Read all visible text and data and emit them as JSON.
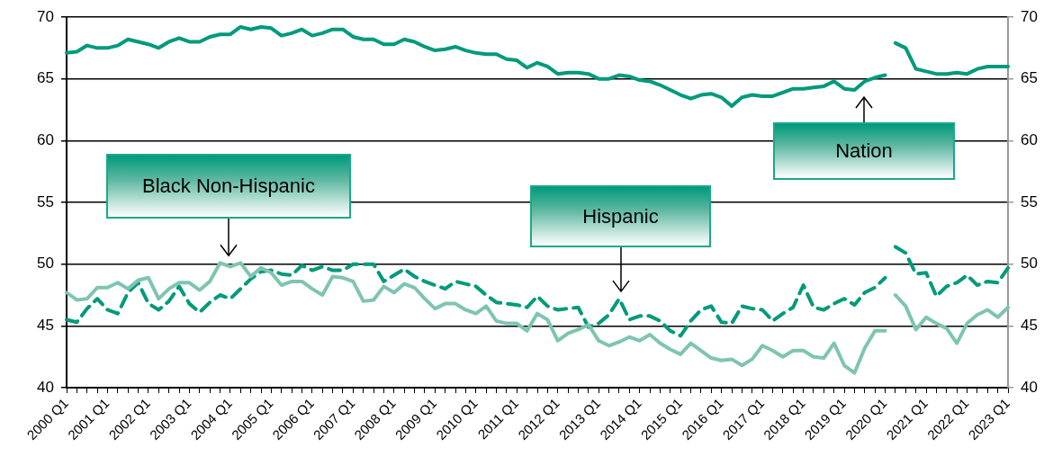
{
  "chart_data": {
    "type": "line",
    "categories": [
      "2000 Q1",
      null,
      null,
      null,
      "2001 Q1",
      null,
      null,
      null,
      "2002 Q1",
      null,
      null,
      null,
      "2003 Q1",
      null,
      null,
      null,
      "2004 Q1",
      null,
      null,
      null,
      "2005 Q1",
      null,
      null,
      null,
      "2006 Q1",
      null,
      null,
      null,
      "2007 Q1",
      null,
      null,
      null,
      "2008 Q1",
      null,
      null,
      null,
      "2009 Q1",
      null,
      null,
      null,
      "2010 Q1",
      null,
      null,
      null,
      "2011 Q1",
      null,
      null,
      null,
      "2012 Q1",
      null,
      null,
      null,
      "2013 Q1",
      null,
      null,
      null,
      "2014 Q1",
      null,
      null,
      null,
      "2015 Q1",
      null,
      null,
      null,
      "2016 Q1",
      null,
      null,
      null,
      "2017 Q1",
      null,
      null,
      null,
      "2018 Q1",
      null,
      null,
      null,
      "2019 Q1",
      null,
      null,
      null,
      "2020 Q1",
      null,
      null,
      null,
      "2021 Q1",
      null,
      null,
      null,
      "2022 Q1",
      null,
      null,
      null,
      "2023 Q1"
    ],
    "series": [
      {
        "name": "Nation",
        "color": "#009a7b",
        "line_style": "solid",
        "values": [
          67.1,
          67.2,
          67.7,
          67.5,
          67.5,
          67.7,
          68.2,
          68.0,
          67.8,
          67.5,
          68.0,
          68.3,
          68.0,
          68.0,
          68.4,
          68.6,
          68.6,
          69.2,
          69.0,
          69.2,
          69.1,
          68.5,
          68.7,
          69.0,
          68.5,
          68.7,
          69.0,
          69.0,
          68.4,
          68.2,
          68.2,
          67.8,
          67.8,
          68.2,
          68.0,
          67.6,
          67.3,
          67.4,
          67.6,
          67.3,
          67.1,
          67.0,
          67.0,
          66.6,
          66.5,
          65.9,
          66.3,
          66.0,
          65.4,
          65.5,
          65.5,
          65.4,
          65.0,
          65.0,
          65.3,
          65.2,
          64.9,
          64.8,
          64.5,
          64.1,
          63.7,
          63.4,
          63.7,
          63.8,
          63.5,
          62.8,
          63.5,
          63.7,
          63.6,
          63.6,
          63.9,
          64.2,
          64.2,
          64.3,
          64.4,
          64.8,
          64.2,
          64.1,
          64.8,
          65.1,
          65.3,
          null,
          null,
          null,
          null,
          null,
          null,
          null,
          null,
          null,
          null,
          null,
          null
        ]
      },
      {
        "name": "Black Non-Hispanic",
        "color": "#7fc4b2",
        "line_style": "solid",
        "values": [
          47.7,
          47.1,
          47.2,
          48.1,
          48.1,
          48.5,
          48.0,
          48.7,
          48.9,
          47.2,
          48.0,
          48.5,
          48.5,
          47.9,
          48.6,
          50.1,
          49.8,
          50.1,
          49.0,
          49.7,
          49.3,
          48.3,
          48.6,
          48.6,
          48.0,
          47.5,
          49.0,
          48.9,
          48.6,
          47.0,
          47.1,
          48.2,
          47.7,
          48.4,
          48.1,
          47.2,
          46.4,
          46.8,
          46.8,
          46.3,
          46.0,
          46.6,
          45.4,
          45.2,
          45.2,
          44.6,
          46.0,
          45.5,
          43.8,
          44.4,
          44.7,
          45.1,
          43.8,
          43.4,
          43.7,
          44.1,
          43.8,
          44.3,
          43.6,
          43.1,
          42.7,
          43.6,
          43.0,
          42.4,
          42.2,
          42.3,
          41.8,
          42.3,
          43.4,
          43.0,
          42.5,
          43.0,
          43.0,
          42.5,
          42.4,
          43.6,
          41.8,
          41.2,
          43.2,
          44.6,
          44.6,
          null,
          null,
          null,
          null,
          null,
          null,
          null,
          null,
          null,
          null,
          null,
          null
        ]
      },
      {
        "name": "Hispanic",
        "color": "#009a7b",
        "line_style": "dashed",
        "values": [
          45.5,
          45.3,
          46.4,
          47.2,
          46.3,
          46.0,
          47.7,
          48.5,
          46.8,
          46.3,
          47.0,
          48.2,
          46.8,
          46.1,
          46.9,
          47.5,
          47.2,
          48.0,
          48.8,
          49.4,
          49.5,
          49.2,
          49.1,
          49.9,
          49.5,
          49.8,
          49.5,
          49.5,
          50.0,
          50.0,
          50.0,
          48.6,
          49.1,
          49.6,
          49.0,
          48.6,
          48.3,
          48.0,
          48.6,
          48.4,
          48.2,
          47.5,
          46.9,
          46.8,
          46.7,
          46.5,
          47.4,
          46.6,
          46.3,
          46.4,
          46.5,
          44.9,
          45.2,
          45.9,
          47.2,
          45.5,
          45.8,
          45.8,
          45.4,
          44.6,
          44.2,
          45.4,
          46.3,
          46.6,
          45.3,
          45.2,
          46.6,
          46.4,
          46.3,
          45.4,
          46.0,
          46.5,
          48.3,
          46.5,
          46.3,
          46.8,
          47.2,
          46.7,
          47.7,
          48.1,
          48.9,
          null,
          null,
          null,
          null,
          null,
          null,
          null,
          null,
          null,
          null,
          null,
          null
        ]
      },
      {
        "color": "#009a7b",
        "line_style": "solid",
        "values": [
          null,
          null,
          null,
          null,
          null,
          null,
          null,
          null,
          null,
          null,
          null,
          null,
          null,
          null,
          null,
          null,
          null,
          null,
          null,
          null,
          null,
          null,
          null,
          null,
          null,
          null,
          null,
          null,
          null,
          null,
          null,
          null,
          null,
          null,
          null,
          null,
          null,
          null,
          null,
          null,
          null,
          null,
          null,
          null,
          null,
          null,
          null,
          null,
          null,
          null,
          null,
          null,
          null,
          null,
          null,
          null,
          null,
          null,
          null,
          null,
          null,
          null,
          null,
          null,
          null,
          null,
          null,
          null,
          null,
          null,
          null,
          null,
          null,
          null,
          null,
          null,
          null,
          null,
          null,
          null,
          null,
          67.9,
          67.5,
          65.8,
          65.6,
          65.4,
          65.4,
          65.5,
          65.4,
          65.8,
          66.0,
          66.0,
          66.0
        ]
      },
      {
        "color": "#7fc4b2",
        "line_style": "solid",
        "values": [
          null,
          null,
          null,
          null,
          null,
          null,
          null,
          null,
          null,
          null,
          null,
          null,
          null,
          null,
          null,
          null,
          null,
          null,
          null,
          null,
          null,
          null,
          null,
          null,
          null,
          null,
          null,
          null,
          null,
          null,
          null,
          null,
          null,
          null,
          null,
          null,
          null,
          null,
          null,
          null,
          null,
          null,
          null,
          null,
          null,
          null,
          null,
          null,
          null,
          null,
          null,
          null,
          null,
          null,
          null,
          null,
          null,
          null,
          null,
          null,
          null,
          null,
          null,
          null,
          null,
          null,
          null,
          null,
          null,
          null,
          null,
          null,
          null,
          null,
          null,
          null,
          null,
          null,
          null,
          null,
          null,
          47.5,
          46.6,
          44.7,
          45.7,
          45.2,
          44.8,
          43.6,
          45.2,
          45.9,
          46.3,
          45.7,
          46.5
        ]
      },
      {
        "color": "#009a7b",
        "line_style": "dashed",
        "values": [
          null,
          null,
          null,
          null,
          null,
          null,
          null,
          null,
          null,
          null,
          null,
          null,
          null,
          null,
          null,
          null,
          null,
          null,
          null,
          null,
          null,
          null,
          null,
          null,
          null,
          null,
          null,
          null,
          null,
          null,
          null,
          null,
          null,
          null,
          null,
          null,
          null,
          null,
          null,
          null,
          null,
          null,
          null,
          null,
          null,
          null,
          null,
          null,
          null,
          null,
          null,
          null,
          null,
          null,
          null,
          null,
          null,
          null,
          null,
          null,
          null,
          null,
          null,
          null,
          null,
          null,
          null,
          null,
          null,
          null,
          null,
          null,
          null,
          null,
          null,
          null,
          null,
          null,
          null,
          null,
          null,
          51.4,
          50.9,
          49.2,
          49.3,
          47.4,
          48.2,
          48.5,
          49.1,
          48.3,
          48.6,
          48.5,
          49.7
        ]
      }
    ],
    "ylim": [
      40,
      70
    ],
    "yticks": [
      40,
      45,
      50,
      55,
      60,
      65,
      70
    ],
    "y2lim": [
      40,
      70
    ],
    "y2ticks": [
      40,
      45,
      50,
      55,
      60,
      65,
      70
    ],
    "grid": "y",
    "marker": "none"
  }
}
